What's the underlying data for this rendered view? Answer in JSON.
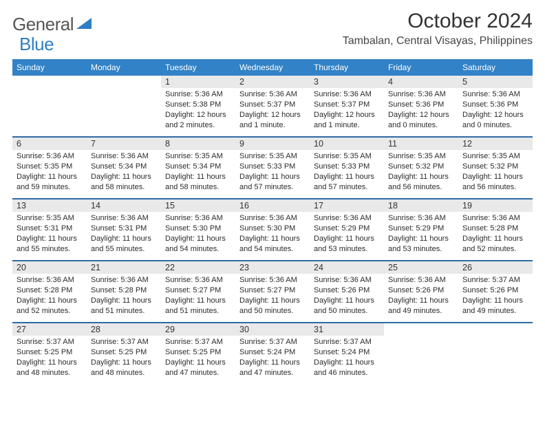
{
  "brand": {
    "general": "General",
    "blue": "Blue"
  },
  "title": "October 2024",
  "location": "Tambalan, Central Visayas, Philippines",
  "colors": {
    "header_bg": "#3182c6",
    "header_text": "#ffffff",
    "week_divider": "#2f6aa3",
    "daynum_bg": "#e9e9e9",
    "text": "#2b2b2b",
    "logo_gray": "#555555",
    "logo_blue": "#2f7ec3"
  },
  "dow": [
    "Sunday",
    "Monday",
    "Tuesday",
    "Wednesday",
    "Thursday",
    "Friday",
    "Saturday"
  ],
  "weeks": [
    [
      null,
      null,
      {
        "n": "1",
        "sr": "5:36 AM",
        "ss": "5:38 PM",
        "dl": "12 hours and 2 minutes."
      },
      {
        "n": "2",
        "sr": "5:36 AM",
        "ss": "5:37 PM",
        "dl": "12 hours and 1 minute."
      },
      {
        "n": "3",
        "sr": "5:36 AM",
        "ss": "5:37 PM",
        "dl": "12 hours and 1 minute."
      },
      {
        "n": "4",
        "sr": "5:36 AM",
        "ss": "5:36 PM",
        "dl": "12 hours and 0 minutes."
      },
      {
        "n": "5",
        "sr": "5:36 AM",
        "ss": "5:36 PM",
        "dl": "12 hours and 0 minutes."
      }
    ],
    [
      {
        "n": "6",
        "sr": "5:36 AM",
        "ss": "5:35 PM",
        "dl": "11 hours and 59 minutes."
      },
      {
        "n": "7",
        "sr": "5:36 AM",
        "ss": "5:34 PM",
        "dl": "11 hours and 58 minutes."
      },
      {
        "n": "8",
        "sr": "5:35 AM",
        "ss": "5:34 PM",
        "dl": "11 hours and 58 minutes."
      },
      {
        "n": "9",
        "sr": "5:35 AM",
        "ss": "5:33 PM",
        "dl": "11 hours and 57 minutes."
      },
      {
        "n": "10",
        "sr": "5:35 AM",
        "ss": "5:33 PM",
        "dl": "11 hours and 57 minutes."
      },
      {
        "n": "11",
        "sr": "5:35 AM",
        "ss": "5:32 PM",
        "dl": "11 hours and 56 minutes."
      },
      {
        "n": "12",
        "sr": "5:35 AM",
        "ss": "5:32 PM",
        "dl": "11 hours and 56 minutes."
      }
    ],
    [
      {
        "n": "13",
        "sr": "5:35 AM",
        "ss": "5:31 PM",
        "dl": "11 hours and 55 minutes."
      },
      {
        "n": "14",
        "sr": "5:36 AM",
        "ss": "5:31 PM",
        "dl": "11 hours and 55 minutes."
      },
      {
        "n": "15",
        "sr": "5:36 AM",
        "ss": "5:30 PM",
        "dl": "11 hours and 54 minutes."
      },
      {
        "n": "16",
        "sr": "5:36 AM",
        "ss": "5:30 PM",
        "dl": "11 hours and 54 minutes."
      },
      {
        "n": "17",
        "sr": "5:36 AM",
        "ss": "5:29 PM",
        "dl": "11 hours and 53 minutes."
      },
      {
        "n": "18",
        "sr": "5:36 AM",
        "ss": "5:29 PM",
        "dl": "11 hours and 53 minutes."
      },
      {
        "n": "19",
        "sr": "5:36 AM",
        "ss": "5:28 PM",
        "dl": "11 hours and 52 minutes."
      }
    ],
    [
      {
        "n": "20",
        "sr": "5:36 AM",
        "ss": "5:28 PM",
        "dl": "11 hours and 52 minutes."
      },
      {
        "n": "21",
        "sr": "5:36 AM",
        "ss": "5:28 PM",
        "dl": "11 hours and 51 minutes."
      },
      {
        "n": "22",
        "sr": "5:36 AM",
        "ss": "5:27 PM",
        "dl": "11 hours and 51 minutes."
      },
      {
        "n": "23",
        "sr": "5:36 AM",
        "ss": "5:27 PM",
        "dl": "11 hours and 50 minutes."
      },
      {
        "n": "24",
        "sr": "5:36 AM",
        "ss": "5:26 PM",
        "dl": "11 hours and 50 minutes."
      },
      {
        "n": "25",
        "sr": "5:36 AM",
        "ss": "5:26 PM",
        "dl": "11 hours and 49 minutes."
      },
      {
        "n": "26",
        "sr": "5:37 AM",
        "ss": "5:26 PM",
        "dl": "11 hours and 49 minutes."
      }
    ],
    [
      {
        "n": "27",
        "sr": "5:37 AM",
        "ss": "5:25 PM",
        "dl": "11 hours and 48 minutes."
      },
      {
        "n": "28",
        "sr": "5:37 AM",
        "ss": "5:25 PM",
        "dl": "11 hours and 48 minutes."
      },
      {
        "n": "29",
        "sr": "5:37 AM",
        "ss": "5:25 PM",
        "dl": "11 hours and 47 minutes."
      },
      {
        "n": "30",
        "sr": "5:37 AM",
        "ss": "5:24 PM",
        "dl": "11 hours and 47 minutes."
      },
      {
        "n": "31",
        "sr": "5:37 AM",
        "ss": "5:24 PM",
        "dl": "11 hours and 46 minutes."
      },
      null,
      null
    ]
  ],
  "labels": {
    "sunrise": "Sunrise: ",
    "sunset": "Sunset: ",
    "daylight": "Daylight: "
  }
}
